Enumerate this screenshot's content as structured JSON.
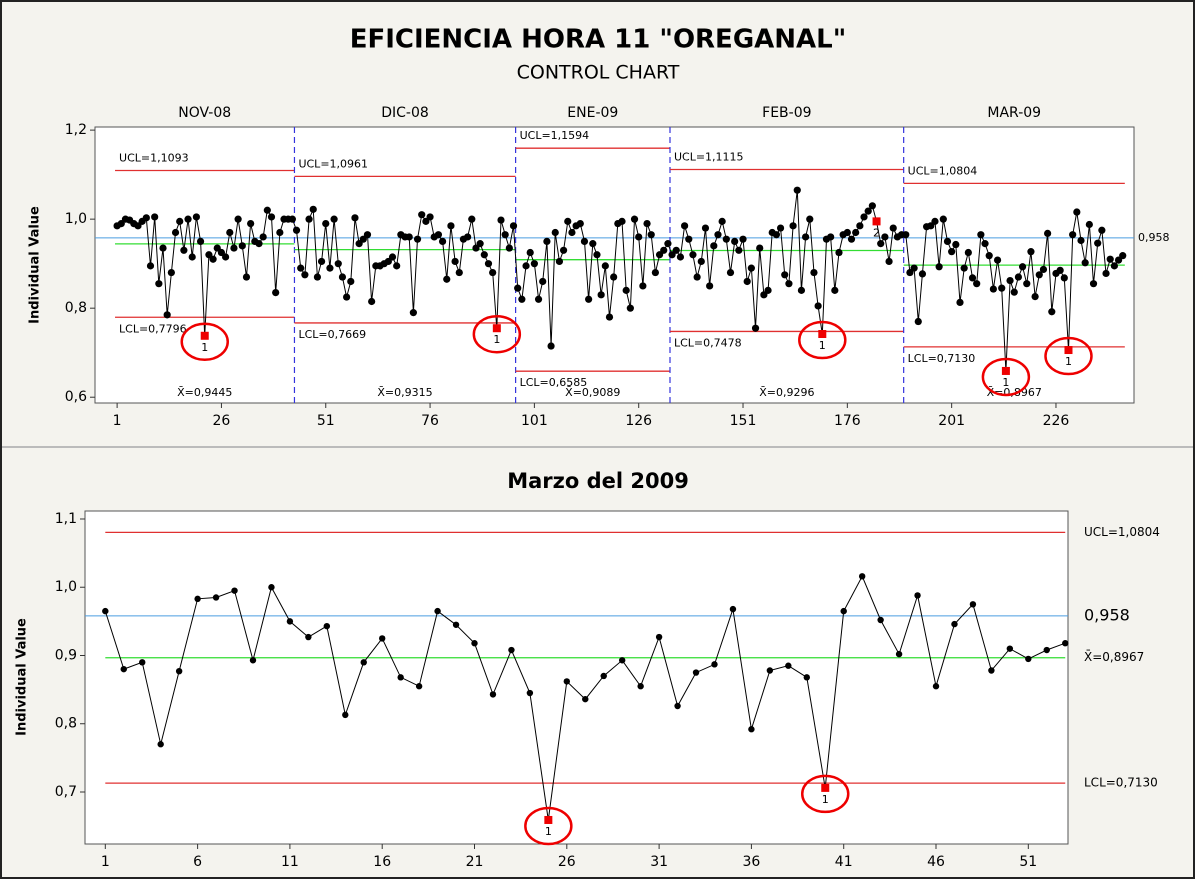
{
  "chart_data": [
    {
      "type": "line",
      "title": "EFICIENCIA HORA 11 \"OREGANAL\"",
      "subtitle": "CONTROL CHART",
      "y_label": "Individual Value",
      "color": "#000000",
      "flag_color": "#ee0000",
      "limit_color": "#e03030",
      "mean_color": "#33dd33",
      "stage_line_color": "#3333dd",
      "values": [
        0.985,
        0.99,
        1.0,
        0.998,
        0.99,
        0.985,
        0.995,
        1.003,
        0.895,
        1.005,
        0.855,
        0.935,
        0.785,
        0.88,
        0.97,
        0.995,
        0.93,
        1.0,
        0.915,
        1.005,
        0.95,
        0.738,
        0.92,
        0.91,
        0.935,
        0.925,
        0.915,
        0.97,
        0.935,
        1.0,
        0.94,
        0.87,
        0.99,
        0.95,
        0.945,
        0.96,
        1.02,
        1.005,
        0.835,
        0.97,
        1.0,
        1.0,
        1.0,
        0.975,
        0.89,
        0.875,
        1.0,
        1.022,
        0.87,
        0.905,
        0.99,
        0.89,
        1.0,
        0.9,
        0.87,
        0.825,
        0.86,
        1.003,
        0.945,
        0.955,
        0.965,
        0.815,
        0.895,
        0.895,
        0.9,
        0.905,
        0.915,
        0.895,
        0.965,
        0.96,
        0.96,
        0.79,
        0.955,
        1.01,
        0.995,
        1.005,
        0.96,
        0.965,
        0.95,
        0.865,
        0.985,
        0.905,
        0.88,
        0.955,
        0.96,
        1.0,
        0.935,
        0.945,
        0.92,
        0.9,
        0.88,
        0.755,
        0.998,
        0.965,
        0.935,
        0.985,
        0.845,
        0.82,
        0.895,
        0.925,
        0.9,
        0.82,
        0.86,
        0.95,
        0.715,
        0.97,
        0.905,
        0.93,
        0.995,
        0.97,
        0.985,
        0.99,
        0.95,
        0.82,
        0.945,
        0.92,
        0.83,
        0.895,
        0.78,
        0.87,
        0.99,
        0.995,
        0.84,
        0.8,
        1.0,
        0.96,
        0.85,
        0.99,
        0.965,
        0.88,
        0.92,
        0.93,
        0.945,
        0.92,
        0.93,
        0.915,
        0.985,
        0.955,
        0.92,
        0.87,
        0.905,
        0.98,
        0.85,
        0.94,
        0.965,
        0.995,
        0.955,
        0.88,
        0.95,
        0.93,
        0.955,
        0.86,
        0.89,
        0.755,
        0.935,
        0.83,
        0.84,
        0.97,
        0.965,
        0.98,
        0.875,
        0.855,
        0.985,
        1.065,
        0.84,
        0.96,
        1.0,
        0.88,
        0.805,
        0.742,
        0.955,
        0.96,
        0.84,
        0.925,
        0.965,
        0.97,
        0.955,
        0.97,
        0.985,
        1.005,
        1.018,
        1.03,
        0.995,
        0.945,
        0.96,
        0.905,
        0.98,
        0.96,
        0.965,
        0.965,
        0.88,
        0.89,
        0.77,
        0.877,
        0.983,
        0.985,
        0.995,
        0.893,
        1.0,
        0.95,
        0.927,
        0.943,
        0.813,
        0.89,
        0.925,
        0.868,
        0.855,
        0.965,
        0.945,
        0.918,
        0.843,
        0.908,
        0.845,
        0.659,
        0.862,
        0.836,
        0.87,
        0.893,
        0.855,
        0.927,
        0.826,
        0.875,
        0.887,
        0.968,
        0.792,
        0.878,
        0.885,
        0.868,
        0.706,
        0.965,
        1.016,
        0.952,
        0.902,
        0.988,
        0.855,
        0.946,
        0.975,
        0.878,
        0.91,
        0.895,
        0.908,
        0.918
      ],
      "stages": [
        {
          "name": "NOV-08",
          "start": 1,
          "end": 43,
          "ucl": 1.1093,
          "ucl_label": "UCL=1,1093",
          "lcl": 0.7796,
          "lcl_label": "LCL=0,7796",
          "mean": 0.9445,
          "mean_label": "X̄=0,9445"
        },
        {
          "name": "DIC-08",
          "start": 44,
          "end": 96,
          "ucl": 1.0961,
          "ucl_label": "UCL=1,0961",
          "lcl": 0.7669,
          "lcl_label": "LCL=0,7669",
          "mean": 0.9315,
          "mean_label": "X̄=0,9315"
        },
        {
          "name": "ENE-09",
          "start": 97,
          "end": 133,
          "ucl": 1.1594,
          "ucl_label": "UCL=1,1594",
          "lcl": 0.6585,
          "lcl_label": "LCL=0,6585",
          "mean": 0.9089,
          "mean_label": "X̄=0,9089"
        },
        {
          "name": "FEB-09",
          "start": 134,
          "end": 189,
          "ucl": 1.1115,
          "ucl_label": "UCL=1,1115",
          "lcl": 0.7478,
          "lcl_label": "LCL=0,7478",
          "mean": 0.9296,
          "mean_label": "X̄=0,9296"
        },
        {
          "name": "MAR-09",
          "start": 190,
          "end": 242,
          "ucl": 1.0804,
          "ucl_label": "UCL=1,0804",
          "lcl": 0.713,
          "lcl_label": "LCL=0,7130",
          "mean": 0.8967,
          "mean_label": "X̄=0,8967"
        }
      ],
      "reference": {
        "value": 0.958,
        "label": "0,958",
        "color": "#4a9de0"
      },
      "flags": [
        {
          "x": 22,
          "label": "1"
        },
        {
          "x": 92,
          "label": "1"
        },
        {
          "x": 170,
          "label": "1"
        },
        {
          "x": 183,
          "label": "2"
        },
        {
          "x": 214,
          "label": "1"
        },
        {
          "x": 229,
          "label": "1"
        }
      ],
      "xlim": [
        -4.3,
        244.7
      ],
      "xticks": [
        1,
        26,
        51,
        76,
        101,
        126,
        151,
        176,
        201,
        226
      ],
      "ylim": [
        0.587,
        1.207
      ],
      "yticks": [
        {
          "value": 0.6,
          "label": "0,6"
        },
        {
          "value": 0.8,
          "label": "0,8"
        },
        {
          "value": 1.0,
          "label": "1,0"
        },
        {
          "value": 1.2,
          "label": "1,2"
        }
      ]
    },
    {
      "type": "line",
      "title": "Marzo del 2009",
      "y_label": "Individual Value",
      "color": "#000000",
      "flag_color": "#ee0000",
      "limit_color": "#e03030",
      "mean_color": "#33dd33",
      "values": [
        0.965,
        0.88,
        0.89,
        0.77,
        0.877,
        0.983,
        0.985,
        0.995,
        0.893,
        1.0,
        0.95,
        0.927,
        0.943,
        0.813,
        0.89,
        0.925,
        0.868,
        0.855,
        0.965,
        0.945,
        0.918,
        0.843,
        0.908,
        0.845,
        0.659,
        0.862,
        0.836,
        0.87,
        0.893,
        0.855,
        0.927,
        0.826,
        0.875,
        0.887,
        0.968,
        0.792,
        0.878,
        0.885,
        0.868,
        0.706,
        0.965,
        1.016,
        0.952,
        0.902,
        0.988,
        0.855,
        0.946,
        0.975,
        0.878,
        0.91,
        0.895,
        0.908,
        0.918
      ],
      "stages": [
        {
          "start": 1,
          "end": 53,
          "ucl": 1.0804,
          "ucl_label": "UCL=1,0804",
          "lcl": 0.713,
          "lcl_label": "LCL=0,7130",
          "mean": 0.8967,
          "mean_label": "X̄=0,8967"
        }
      ],
      "reference": {
        "value": 0.958,
        "label": "0,958",
        "color": "#4a9de0"
      },
      "flags": [
        {
          "x": 25,
          "label": "1"
        },
        {
          "x": 40,
          "label": "1"
        }
      ],
      "xlim": [
        -0.1,
        53.15
      ],
      "xticks": [
        1,
        6,
        11,
        16,
        21,
        26,
        31,
        36,
        41,
        46,
        51
      ],
      "ylim": [
        0.6238,
        1.1117
      ],
      "yticks": [
        {
          "value": 0.7,
          "label": "0,7"
        },
        {
          "value": 0.8,
          "label": "0,8"
        },
        {
          "value": 0.9,
          "label": "0,9"
        },
        {
          "value": 1.0,
          "label": "1,0"
        },
        {
          "value": 1.1,
          "label": "1,1"
        }
      ]
    }
  ]
}
